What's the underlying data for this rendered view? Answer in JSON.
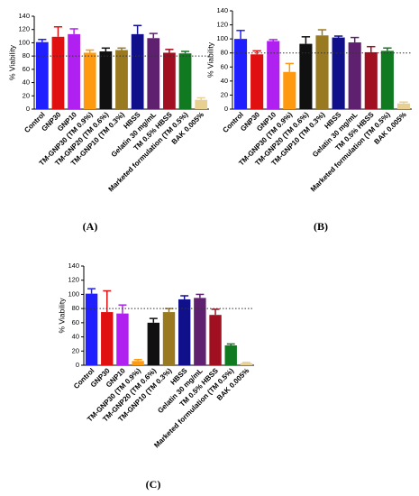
{
  "chart_data": [
    {
      "type": "bar",
      "panel_label": "(A)",
      "ylabel": "% Viability",
      "categories": [
        "Control",
        "GNP30",
        "GNP10",
        "TM-GNP30 (TM 0.9%)",
        "TM-GNP20 (TM 0.6%)",
        "TM-GNP10 (TM 0.3%)",
        "HBSS",
        "Gelatin 30 mg/mL",
        "TM 0.5% HBSS",
        "Marketed formulation (TM 0.5%)",
        "BAK 0.005%"
      ],
      "values": [
        101,
        109,
        113,
        85,
        87,
        89,
        113,
        107,
        85,
        84,
        14
      ],
      "errors": [
        4,
        15,
        8,
        4,
        5,
        3,
        13,
        7,
        5,
        3,
        3
      ],
      "colors": [
        "#1f1fff",
        "#e01010",
        "#b020f0",
        "#ff9a10",
        "#101010",
        "#9a7a20",
        "#10108a",
        "#602070",
        "#a01020",
        "#107a20",
        "#e8d090"
      ],
      "ylim": [
        0,
        140
      ],
      "yticks": [
        0,
        20,
        40,
        60,
        80,
        100,
        120,
        140
      ],
      "reference_line": 80
    },
    {
      "type": "bar",
      "panel_label": "(B)",
      "ylabel": "% Viability",
      "categories": [
        "Control",
        "GNP30",
        "GNP10",
        "TM-GNP30 (TM 0.9%)",
        "TM-GNP20 (TM 0.6%)",
        "TM-GNP10 (TM 0.3%)",
        "HBSS",
        "Gelatin 30 mg/mL",
        "TM 0.5% HBSS",
        "Marketed formulation (TM 0.5%)",
        "BAK 0.005%"
      ],
      "values": [
        100,
        78,
        97,
        53,
        93,
        105,
        102,
        95,
        81,
        83,
        8
      ],
      "errors": [
        12,
        5,
        2,
        12,
        10,
        8,
        2,
        7,
        8,
        4,
        2
      ],
      "colors": [
        "#1f1fff",
        "#e01010",
        "#b020f0",
        "#ff9a10",
        "#101010",
        "#9a7a20",
        "#10108a",
        "#602070",
        "#a01020",
        "#107a20",
        "#e8d090"
      ],
      "ylim": [
        0,
        140
      ],
      "yticks": [
        0,
        20,
        40,
        60,
        80,
        100,
        120,
        140
      ],
      "reference_line": 80
    },
    {
      "type": "bar",
      "panel_label": "(C)",
      "ylabel": "% Viability",
      "categories": [
        "Control",
        "GNP30",
        "GNP10",
        "TM-GNP30 (TM 0.9%)",
        "TM-GNP20 (TM 0.6%)",
        "TM-GNP10 (TM 0.3%)",
        "HBSS",
        "Gelatin 30 mg/mL",
        "TM 0.5% HBSS",
        "Marketed formulation (TM 0.5%)",
        "BAK 0.005%"
      ],
      "values": [
        101,
        75,
        73,
        6,
        60,
        75,
        93,
        95,
        71,
        28,
        3
      ],
      "errors": [
        7,
        30,
        12,
        2,
        6,
        5,
        5,
        5,
        8,
        2,
        1
      ],
      "colors": [
        "#1f1fff",
        "#e01010",
        "#b020f0",
        "#ff9a10",
        "#101010",
        "#9a7a20",
        "#10108a",
        "#602070",
        "#a01020",
        "#107a20",
        "#e8d090"
      ],
      "ylim": [
        0,
        140
      ],
      "yticks": [
        0,
        20,
        40,
        60,
        80,
        100,
        120,
        140
      ],
      "reference_line": 80
    }
  ]
}
